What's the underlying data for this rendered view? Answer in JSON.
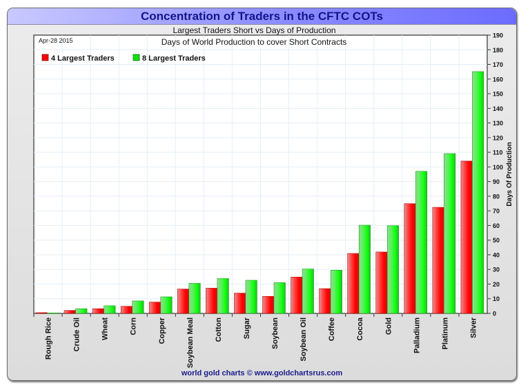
{
  "chart_data": {
    "type": "bar",
    "title": "Concentration of Traders in the CFTC COTs",
    "subtitle": "Largest Traders Short vs Days of Production",
    "inner_title": "Days of World Production to cover Short Contracts",
    "date_label": "Apr-28 2015",
    "xlabel": "",
    "ylabel": "Days Of Production",
    "ylim": [
      0,
      190
    ],
    "yticks": [
      0,
      10,
      20,
      30,
      40,
      50,
      60,
      70,
      80,
      90,
      100,
      110,
      120,
      130,
      140,
      150,
      160,
      170,
      180,
      190
    ],
    "y_axis_side": "right",
    "grid": true,
    "legend_position": "top-left",
    "categories": [
      "Rough Rice",
      "Crude Oil",
      "Wheat",
      "Corn",
      "Copper",
      "Soybean Meal",
      "Cotton",
      "Sugar",
      "Soybean",
      "Soybean Oil",
      "Coffee",
      "Cocoa",
      "Gold",
      "Palladium",
      "Platinum",
      "Silver"
    ],
    "series": [
      {
        "name": "4 Largest Traders",
        "color": "#ff1a1a",
        "values": [
          0.5,
          2.0,
          3.2,
          4.8,
          7.7,
          16.6,
          17.2,
          13.8,
          11.6,
          24.8,
          16.9,
          40.9,
          41.9,
          74.9,
          72.4,
          104.0
        ]
      },
      {
        "name": "8 Largest Traders",
        "color": "#1aff1a",
        "values": [
          0.3,
          3.2,
          5.2,
          8.5,
          11.3,
          20.5,
          23.8,
          22.6,
          21.0,
          30.3,
          29.5,
          60.2,
          59.9,
          97.0,
          109.1,
          165.1
        ]
      }
    ],
    "footer": "world gold charts © www.goldchartsrus.com"
  }
}
